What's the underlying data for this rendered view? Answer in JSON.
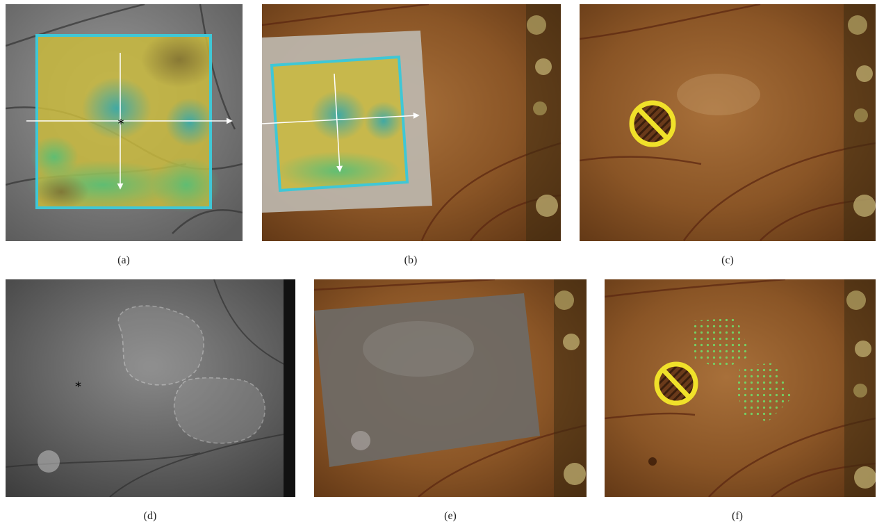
{
  "figure": {
    "panels": [
      {
        "id": "a",
        "caption": "(a)",
        "fovea_marker": "*",
        "modality": "grayscale-with-heatmap"
      },
      {
        "id": "b",
        "caption": "(b)",
        "modality": "color-fundus-with-overlay"
      },
      {
        "id": "c",
        "caption": "(c)",
        "modality": "color-fundus-with-symbol"
      },
      {
        "id": "d",
        "caption": "(d)",
        "fovea_marker": "*",
        "modality": "grayscale-infrared"
      },
      {
        "id": "e",
        "caption": "(e)",
        "modality": "color-fundus-with-overlay"
      },
      {
        "id": "f",
        "caption": "(f)",
        "modality": "color-fundus-with-grid"
      }
    ],
    "colors": {
      "frame_cyan": "#3fc7d6",
      "symbol_yellow": "#f0e12a",
      "grid_green": "#6fdc6a",
      "fundus_orange": "#9a5a24",
      "heatmap_yellow": "#cdbd3c",
      "heatmap_green": "#4fae7a"
    },
    "icons": [
      "prohibition-symbol-icon",
      "crosshair-arrows-icon",
      "dashed-region-outline"
    ]
  }
}
